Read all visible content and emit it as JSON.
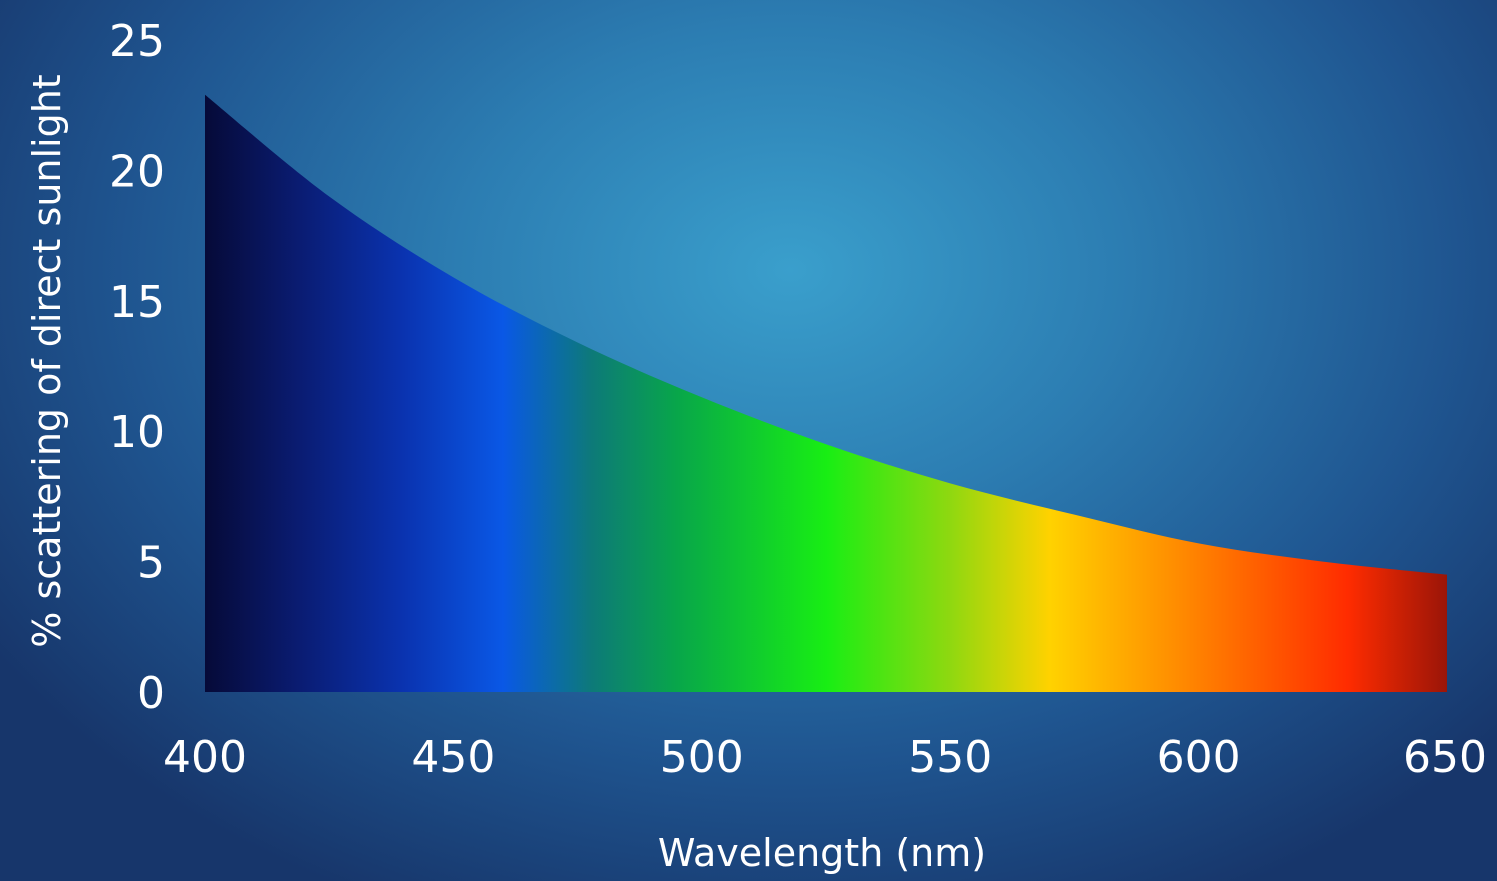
{
  "chart_data": {
    "type": "area",
    "title": "",
    "xlabel": "Wavelength (nm)",
    "ylabel": "% scattering of direct sunlight",
    "xlim": [
      400,
      650
    ],
    "ylim": [
      0,
      25
    ],
    "x_ticks": [
      "400",
      "450",
      "500",
      "550",
      "600",
      "650"
    ],
    "y_ticks": [
      "0",
      "5",
      "10",
      "15",
      "20",
      "25"
    ],
    "grid": false,
    "legend": "none",
    "x": [
      400,
      425,
      450,
      475,
      500,
      525,
      550,
      575,
      600,
      625,
      650
    ],
    "y": [
      22.9,
      19.0,
      15.9,
      13.4,
      11.3,
      9.5,
      8.0,
      6.8,
      5.7,
      5.0,
      4.5
    ],
    "fill_gradient_stops": [
      {
        "wavelength": 400,
        "color": "#060a38"
      },
      {
        "wavelength": 420,
        "color": "#0a1d75"
      },
      {
        "wavelength": 440,
        "color": "#0a33b0"
      },
      {
        "wavelength": 460,
        "color": "#0a58e6"
      },
      {
        "wavelength": 478,
        "color": "#0d7a78"
      },
      {
        "wavelength": 495,
        "color": "#08a64a"
      },
      {
        "wavelength": 525,
        "color": "#18ee14"
      },
      {
        "wavelength": 550,
        "color": "#8fd810"
      },
      {
        "wavelength": 570,
        "color": "#ffd200"
      },
      {
        "wavelength": 595,
        "color": "#ff8e00"
      },
      {
        "wavelength": 630,
        "color": "#ff2c00"
      },
      {
        "wavelength": 650,
        "color": "#9a1508"
      }
    ]
  }
}
